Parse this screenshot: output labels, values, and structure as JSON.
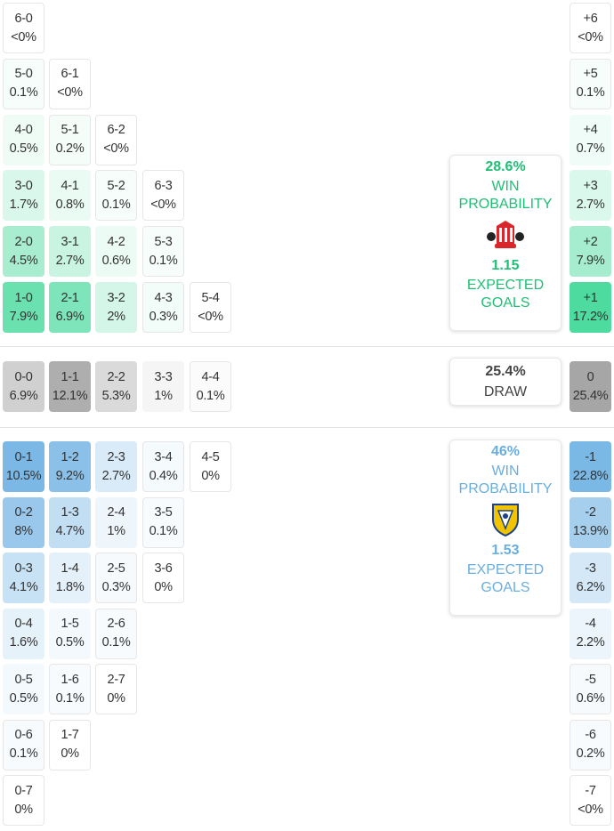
{
  "colors": {
    "home": "#4ddb9f",
    "away": "#7ab8e6",
    "draw": "#a6a6a6",
    "home_text": "#1fbf75",
    "away_text": "#6aaee0",
    "draw_text": "#444444"
  },
  "home_rows": [
    [
      {
        "score": "6-0",
        "pct": "<0%",
        "p": 0
      }
    ],
    [
      {
        "score": "5-0",
        "pct": "0.1%",
        "p": 0.1
      },
      {
        "score": "6-1",
        "pct": "<0%",
        "p": 0
      }
    ],
    [
      {
        "score": "4-0",
        "pct": "0.5%",
        "p": 0.5
      },
      {
        "score": "5-1",
        "pct": "0.2%",
        "p": 0.2
      },
      {
        "score": "6-2",
        "pct": "<0%",
        "p": 0
      }
    ],
    [
      {
        "score": "3-0",
        "pct": "1.7%",
        "p": 1.7
      },
      {
        "score": "4-1",
        "pct": "0.8%",
        "p": 0.8
      },
      {
        "score": "5-2",
        "pct": "0.1%",
        "p": 0.1
      },
      {
        "score": "6-3",
        "pct": "<0%",
        "p": 0
      }
    ],
    [
      {
        "score": "2-0",
        "pct": "4.5%",
        "p": 4.5
      },
      {
        "score": "3-1",
        "pct": "2.7%",
        "p": 2.7
      },
      {
        "score": "4-2",
        "pct": "0.6%",
        "p": 0.6
      },
      {
        "score": "5-3",
        "pct": "0.1%",
        "p": 0.1
      }
    ],
    [
      {
        "score": "1-0",
        "pct": "7.9%",
        "p": 7.9
      },
      {
        "score": "2-1",
        "pct": "6.9%",
        "p": 6.9
      },
      {
        "score": "3-2",
        "pct": "2%",
        "p": 2
      },
      {
        "score": "4-3",
        "pct": "0.3%",
        "p": 0.3
      },
      {
        "score": "5-4",
        "pct": "<0%",
        "p": 0
      }
    ]
  ],
  "draw_row": [
    {
      "score": "0-0",
      "pct": "6.9%",
      "p": 6.9
    },
    {
      "score": "1-1",
      "pct": "12.1%",
      "p": 12.1
    },
    {
      "score": "2-2",
      "pct": "5.3%",
      "p": 5.3
    },
    {
      "score": "3-3",
      "pct": "1%",
      "p": 1
    },
    {
      "score": "4-4",
      "pct": "0.1%",
      "p": 0.1
    }
  ],
  "away_rows": [
    [
      {
        "score": "0-1",
        "pct": "10.5%",
        "p": 10.5
      },
      {
        "score": "1-2",
        "pct": "9.2%",
        "p": 9.2
      },
      {
        "score": "2-3",
        "pct": "2.7%",
        "p": 2.7
      },
      {
        "score": "3-4",
        "pct": "0.4%",
        "p": 0.4
      },
      {
        "score": "4-5",
        "pct": "0%",
        "p": 0
      }
    ],
    [
      {
        "score": "0-2",
        "pct": "8%",
        "p": 8
      },
      {
        "score": "1-3",
        "pct": "4.7%",
        "p": 4.7
      },
      {
        "score": "2-4",
        "pct": "1%",
        "p": 1
      },
      {
        "score": "3-5",
        "pct": "0.1%",
        "p": 0.1
      }
    ],
    [
      {
        "score": "0-3",
        "pct": "4.1%",
        "p": 4.1
      },
      {
        "score": "1-4",
        "pct": "1.8%",
        "p": 1.8
      },
      {
        "score": "2-5",
        "pct": "0.3%",
        "p": 0.3
      },
      {
        "score": "3-6",
        "pct": "0%",
        "p": 0
      }
    ],
    [
      {
        "score": "0-4",
        "pct": "1.6%",
        "p": 1.6
      },
      {
        "score": "1-5",
        "pct": "0.5%",
        "p": 0.5
      },
      {
        "score": "2-6",
        "pct": "0.1%",
        "p": 0.1
      }
    ],
    [
      {
        "score": "0-5",
        "pct": "0.5%",
        "p": 0.5
      },
      {
        "score": "1-6",
        "pct": "0.1%",
        "p": 0.1
      },
      {
        "score": "2-7",
        "pct": "0%",
        "p": 0
      }
    ],
    [
      {
        "score": "0-6",
        "pct": "0.1%",
        "p": 0.1
      },
      {
        "score": "1-7",
        "pct": "0%",
        "p": 0
      }
    ],
    [
      {
        "score": "0-7",
        "pct": "0%",
        "p": 0
      }
    ]
  ],
  "margins_home": [
    {
      "score": "+6",
      "pct": "<0%",
      "p": 0
    },
    {
      "score": "+5",
      "pct": "0.1%",
      "p": 0.1
    },
    {
      "score": "+4",
      "pct": "0.7%",
      "p": 0.7
    },
    {
      "score": "+3",
      "pct": "2.7%",
      "p": 2.7
    },
    {
      "score": "+2",
      "pct": "7.9%",
      "p": 7.9
    },
    {
      "score": "+1",
      "pct": "17.2%",
      "p": 17.2
    }
  ],
  "margin_draw": {
    "score": "0",
    "pct": "25.4%",
    "p": 25.4
  },
  "margins_away": [
    {
      "score": "-1",
      "pct": "22.8%",
      "p": 22.8
    },
    {
      "score": "-2",
      "pct": "13.9%",
      "p": 13.9
    },
    {
      "score": "-3",
      "pct": "6.2%",
      "p": 6.2
    },
    {
      "score": "-4",
      "pct": "2.2%",
      "p": 2.2
    },
    {
      "score": "-5",
      "pct": "0.6%",
      "p": 0.6
    },
    {
      "score": "-6",
      "pct": "0.2%",
      "p": 0.2
    },
    {
      "score": "-7",
      "pct": "<0%",
      "p": 0
    }
  ],
  "home_card": {
    "win_pct": "28.6%",
    "win_label_1": "WIN",
    "win_label_2": "PROBABILITY",
    "xg": "1.15",
    "xg_label_1": "EXPECTED",
    "xg_label_2": "GOALS",
    "crest": "sunderland-crest"
  },
  "draw_card": {
    "pct": "25.4%",
    "label": "DRAW"
  },
  "away_card": {
    "win_pct": "46%",
    "win_label_1": "WIN",
    "win_label_2": "PROBABILITY",
    "xg": "1.53",
    "xg_label_1": "EXPECTED",
    "xg_label_2": "GOALS",
    "crest": "leeds-crest"
  }
}
